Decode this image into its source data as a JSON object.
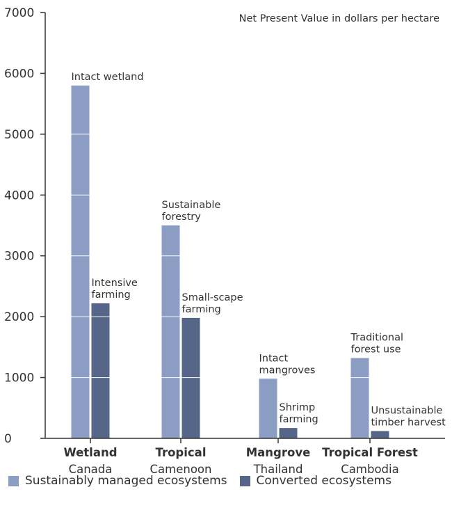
{
  "chart_data": {
    "type": "bar",
    "title": "",
    "annotation": "Net Present Value in dollars per hectare",
    "xlabel": "",
    "ylabel": "",
    "ylim": [
      0,
      7000
    ],
    "yticks": [
      0,
      1000,
      2000,
      3000,
      4000,
      5000,
      6000,
      7000
    ],
    "categories": [
      {
        "name": "Wetland",
        "sub": "Canada"
      },
      {
        "name": "Tropical",
        "sub": "Camenoon"
      },
      {
        "name": "Mangrove",
        "sub": "Thailand"
      },
      {
        "name": "Tropical Forest",
        "sub": "Cambodia"
      }
    ],
    "series": [
      {
        "name": "Sustainably managed ecosystems",
        "color": "#8b9dc3",
        "values": [
          5800,
          3500,
          980,
          1320
        ],
        "labels": [
          [
            "Intact wetland"
          ],
          [
            "Sustainable",
            "forestry"
          ],
          [
            "Intact",
            "mangroves"
          ],
          [
            "Traditional",
            "forest use"
          ]
        ]
      },
      {
        "name": "Converted ecosystems",
        "color": "#556688",
        "values": [
          2220,
          1980,
          170,
          120
        ],
        "labels": [
          [
            "Intensive",
            "farming"
          ],
          [
            "Small-scape",
            "farming"
          ],
          [
            "Shrimp",
            "farming"
          ],
          [
            "Unsustainable",
            "timber harvest"
          ]
        ]
      }
    ],
    "grid": "white lines across bars",
    "legend_position": "bottom"
  }
}
